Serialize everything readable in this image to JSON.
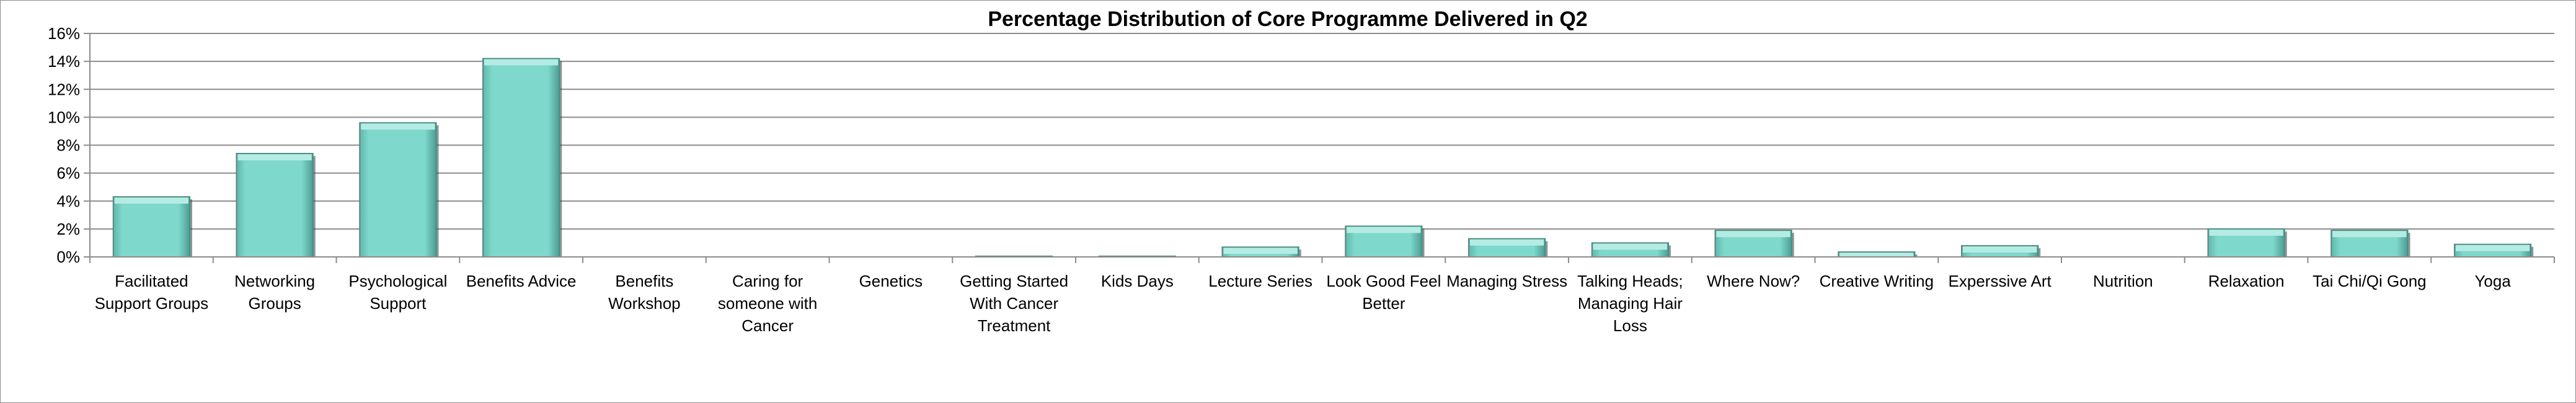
{
  "chart_data": {
    "type": "bar",
    "title": "Percentage Distribution of Core Programme Delivered in Q2",
    "xlabel": "",
    "ylabel": "",
    "ylim": [
      0,
      16
    ],
    "yticks": [
      0,
      2,
      4,
      6,
      8,
      10,
      12,
      14,
      16
    ],
    "ytick_labels": [
      "0%",
      "2%",
      "4%",
      "6%",
      "8%",
      "10%",
      "12%",
      "14%",
      "16%"
    ],
    "grid": true,
    "legend": "none",
    "categories": [
      "Facilitated Support Groups",
      "Networking Groups",
      "Psychological Support",
      "Benefits Advice",
      "Benefits Workshop",
      "Caring for someone with Cancer",
      "Genetics",
      "Getting Started With Cancer Treatment",
      "Kids Days",
      "Lecture Series",
      "Look Good Feel Better",
      "Managing Stress",
      "Talking Heads; Managing Hair Loss",
      "Where Now?",
      "Creative Writing",
      "Experssive Art",
      "Nutrition",
      "Relaxation",
      "Tai Chi/Qi Gong",
      "Yoga"
    ],
    "category_lines": [
      [
        "Facilitated",
        "Support Groups"
      ],
      [
        "Networking",
        "Groups"
      ],
      [
        "Psychological",
        "Support"
      ],
      [
        "Benefits Advice"
      ],
      [
        "Benefits",
        "Workshop"
      ],
      [
        "Caring for",
        "someone with",
        "Cancer"
      ],
      [
        "Genetics"
      ],
      [
        "Getting Started",
        "With Cancer",
        "Treatment"
      ],
      [
        "Kids Days"
      ],
      [
        "Lecture Series"
      ],
      [
        "Look Good Feel",
        "Better"
      ],
      [
        "Managing Stress"
      ],
      [
        "Talking Heads;",
        "Managing Hair",
        "Loss"
      ],
      [
        "Where Now?"
      ],
      [
        "Creative Writing"
      ],
      [
        "Experssive Art"
      ],
      [
        "Nutrition"
      ],
      [
        "Relaxation"
      ],
      [
        "Tai Chi/Qi Gong"
      ],
      [
        "Yoga"
      ]
    ],
    "values": [
      4.3,
      7.4,
      9.6,
      14.2,
      0,
      0,
      0,
      0.05,
      0.05,
      0.7,
      2.2,
      1.3,
      1.0,
      1.9,
      0.35,
      0.8,
      0,
      2.0,
      1.9,
      0.9
    ],
    "colors": {
      "bar_fill": "#7fd8cc",
      "bar_top": "#b4ece4",
      "bar_edge": "#4a8c84",
      "bar_shadow": "#3b3b3b",
      "grid": "#8c8c8c",
      "axis": "#8c8c8c",
      "text": "#000000"
    }
  }
}
